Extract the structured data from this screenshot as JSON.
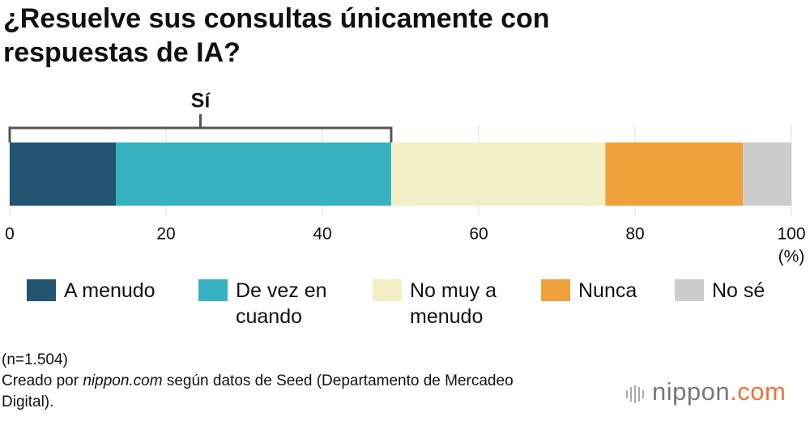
{
  "chart_data": {
    "type": "bar",
    "orientation": "horizontal",
    "stacked": true,
    "title": "¿Resuelve sus consultas únicamente con respuestas de IA?",
    "categories": [
      null
    ],
    "series": [
      {
        "name": "A menudo",
        "color": "#235472",
        "values": [
          13.6
        ]
      },
      {
        "name": "De vez en cuando",
        "color": "#35b1c0",
        "values": [
          35.2
        ]
      },
      {
        "name": "No muy a menudo",
        "color": "#f2efc6",
        "values": [
          27.4
        ]
      },
      {
        "name": "Nunca",
        "color": "#f0a03b",
        "values": [
          17.6
        ]
      },
      {
        "name": "No sé",
        "color": "#cccccc",
        "values": [
          6.2
        ]
      }
    ],
    "bracket": {
      "label": "Sí",
      "series": [
        0,
        1
      ]
    },
    "xlim": [
      0,
      100
    ],
    "xticks": [
      0,
      20,
      40,
      60,
      80,
      100
    ],
    "x_unit": "(%)",
    "grid": true,
    "sample_note": "(n=1.504)",
    "source": [
      "Creado por ",
      "nippon.com",
      " según datos de Seed (Departamento de Mercadeo Digital)."
    ],
    "logo": [
      "nippon",
      ".com"
    ]
  }
}
